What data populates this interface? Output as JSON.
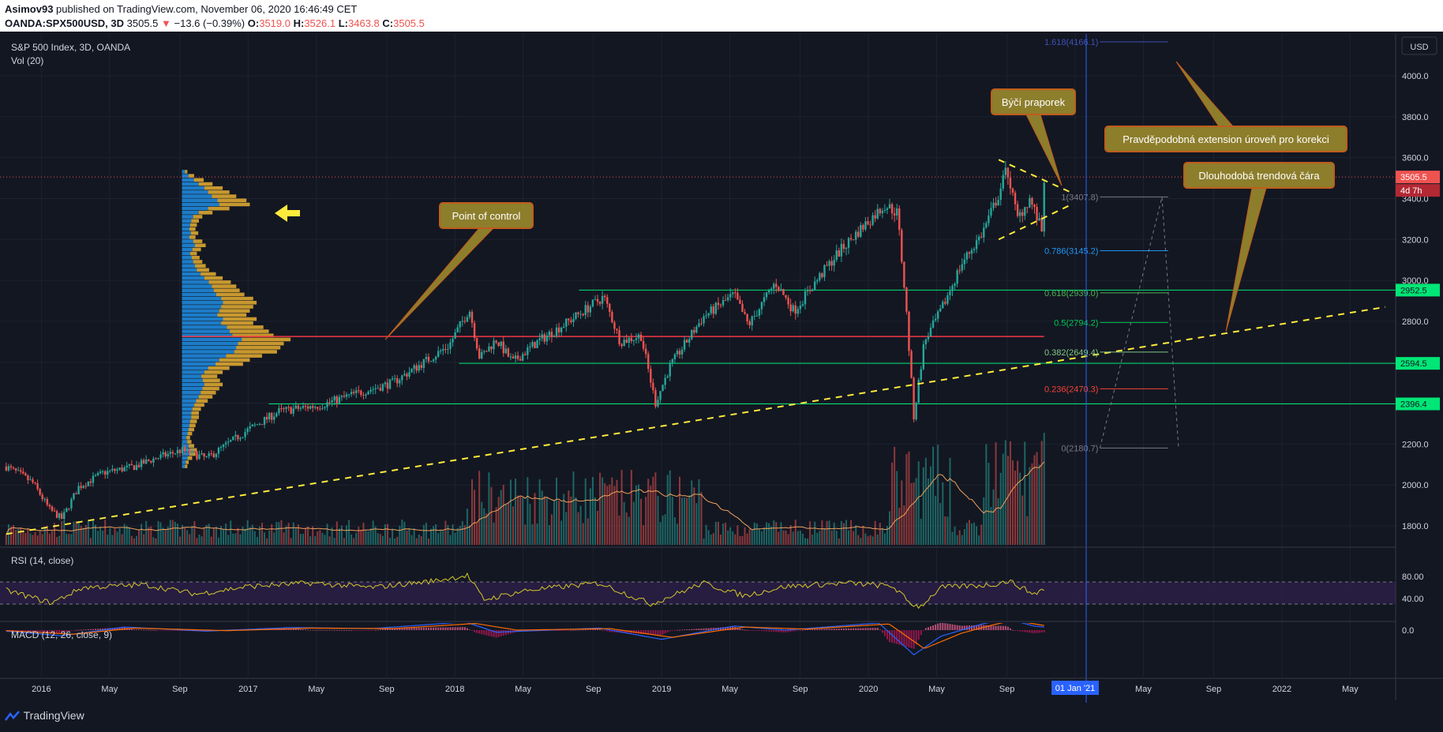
{
  "header": {
    "author": "Asimov93",
    "published_text": "published on TradingView.com, November 06, 2020 16:46:49 CET",
    "symbol": "OANDA:SPX500USD, 3D",
    "last": "3505.5",
    "change": "−13.6 (−0.39%)",
    "open_label": "O:",
    "open": "3519.0",
    "high_label": "H:",
    "high": "3526.1",
    "low_label": "L:",
    "low": "3463.8",
    "close_label": "C:",
    "close": "3505.5"
  },
  "legend": {
    "title": "S&P 500 Index, 3D, OANDA",
    "volume": "Vol (20)",
    "rsi": "RSI (14, close)",
    "macd": "MACD (12, 26, close, 9)"
  },
  "currency": "USD",
  "footer": {
    "brand": "TradingView"
  },
  "colors": {
    "background": "#131722",
    "up": "#26a69a",
    "down": "#ef5350",
    "yellow_line": "#ffeb3b",
    "green_level": "#00e676",
    "poc": "#f23645",
    "annotation_fill": "#8d7e2c",
    "annotation_border": "#c05c1c",
    "rsi": "#d6c82a",
    "macd": "#2962ff",
    "signal": "#ff6d00"
  },
  "chart_data": {
    "type": "candlestick",
    "price_axis": {
      "ticks": [
        "4000.0",
        "3800.0",
        "3600.0",
        "3400.0",
        "3200.0",
        "3000.0",
        "2800.0",
        "2600.0",
        "2400.0",
        "2200.0",
        "2000.0",
        "1800.0"
      ],
      "ylim": [
        1700,
        4300
      ],
      "scale": "linear"
    },
    "time_axis": {
      "ticks": [
        "2016",
        "May",
        "Sep",
        "2017",
        "May",
        "Sep",
        "2018",
        "May",
        "Sep",
        "2019",
        "May",
        "Sep",
        "2020",
        "May",
        "Sep",
        "01 Jan '21",
        "May",
        "Sep",
        "2022",
        "May"
      ]
    },
    "price_path": [
      [
        2015.83,
        2090
      ],
      [
        2015.9,
        2050
      ],
      [
        2015.96,
        2010
      ],
      [
        2016.04,
        1880
      ],
      [
        2016.1,
        1835
      ],
      [
        2016.18,
        1990
      ],
      [
        2016.3,
        2060
      ],
      [
        2016.45,
        2090
      ],
      [
        2016.55,
        2130
      ],
      [
        2016.68,
        2170
      ],
      [
        2016.8,
        2130
      ],
      [
        2016.9,
        2200
      ],
      [
        2017.0,
        2270
      ],
      [
        2017.15,
        2360
      ],
      [
        2017.35,
        2390
      ],
      [
        2017.5,
        2440
      ],
      [
        2017.7,
        2500
      ],
      [
        2017.85,
        2600
      ],
      [
        2017.97,
        2680
      ],
      [
        2018.07,
        2860
      ],
      [
        2018.12,
        2620
      ],
      [
        2018.2,
        2710
      ],
      [
        2018.28,
        2600
      ],
      [
        2018.4,
        2700
      ],
      [
        2018.55,
        2800
      ],
      [
        2018.72,
        2920
      ],
      [
        2018.8,
        2700
      ],
      [
        2018.9,
        2730
      ],
      [
        2018.97,
        2400
      ],
      [
        2019.04,
        2580
      ],
      [
        2019.2,
        2820
      ],
      [
        2019.35,
        2930
      ],
      [
        2019.42,
        2780
      ],
      [
        2019.55,
        2990
      ],
      [
        2019.64,
        2850
      ],
      [
        2019.75,
        3000
      ],
      [
        2019.85,
        3130
      ],
      [
        2019.97,
        3260
      ],
      [
        2020.08,
        3370
      ],
      [
        2020.14,
        3330
      ],
      [
        2020.18,
        2900
      ],
      [
        2020.22,
        2330
      ],
      [
        2020.27,
        2700
      ],
      [
        2020.35,
        2850
      ],
      [
        2020.45,
        3080
      ],
      [
        2020.55,
        3230
      ],
      [
        2020.63,
        3420
      ],
      [
        2020.67,
        3550
      ],
      [
        2020.72,
        3300
      ],
      [
        2020.78,
        3400
      ],
      [
        2020.84,
        3240
      ],
      [
        2020.85,
        3500
      ]
    ],
    "volume_profile": {
      "point_of_control": 2726,
      "bins": [
        [
          3540,
          8
        ],
        [
          3520,
          18
        ],
        [
          3500,
          32
        ],
        [
          3480,
          45
        ],
        [
          3460,
          60
        ],
        [
          3440,
          70
        ],
        [
          3420,
          80
        ],
        [
          3400,
          95
        ],
        [
          3380,
          100
        ],
        [
          3360,
          70
        ],
        [
          3340,
          45
        ],
        [
          3320,
          30
        ],
        [
          3300,
          25
        ],
        [
          3280,
          22
        ],
        [
          3260,
          20
        ],
        [
          3240,
          24
        ],
        [
          3220,
          20
        ],
        [
          3200,
          30
        ],
        [
          3180,
          35
        ],
        [
          3160,
          28
        ],
        [
          3140,
          22
        ],
        [
          3120,
          26
        ],
        [
          3100,
          30
        ],
        [
          3080,
          35
        ],
        [
          3060,
          40
        ],
        [
          3040,
          50
        ],
        [
          3020,
          60
        ],
        [
          3000,
          72
        ],
        [
          2980,
          80
        ],
        [
          2960,
          85
        ],
        [
          2940,
          92
        ],
        [
          2920,
          105
        ],
        [
          2900,
          110
        ],
        [
          2880,
          105
        ],
        [
          2860,
          100
        ],
        [
          2840,
          95
        ],
        [
          2820,
          110
        ],
        [
          2800,
          105
        ],
        [
          2780,
          120
        ],
        [
          2760,
          128
        ],
        [
          2740,
          135
        ],
        [
          2720,
          160
        ],
        [
          2700,
          150
        ],
        [
          2680,
          145
        ],
        [
          2660,
          140
        ],
        [
          2640,
          118
        ],
        [
          2620,
          100
        ],
        [
          2600,
          90
        ],
        [
          2580,
          70
        ],
        [
          2560,
          60
        ],
        [
          2540,
          52
        ],
        [
          2520,
          56
        ],
        [
          2500,
          60
        ],
        [
          2480,
          55
        ],
        [
          2460,
          50
        ],
        [
          2440,
          45
        ],
        [
          2420,
          38
        ],
        [
          2400,
          33
        ],
        [
          2380,
          28
        ],
        [
          2360,
          25
        ],
        [
          2340,
          25
        ],
        [
          2320,
          22
        ],
        [
          2300,
          20
        ],
        [
          2280,
          18
        ],
        [
          2260,
          15
        ],
        [
          2240,
          12
        ],
        [
          2220,
          14
        ],
        [
          2200,
          18
        ],
        [
          2180,
          22
        ],
        [
          2160,
          20
        ],
        [
          2140,
          15
        ],
        [
          2120,
          10
        ],
        [
          2100,
          8
        ]
      ]
    },
    "horizontal_levels": [
      {
        "label": "2952.5",
        "price": 2952.5,
        "from": 2018.6
      },
      {
        "label": "2594.5",
        "price": 2594.5,
        "from": 2018.02
      },
      {
        "label": "2396.4",
        "price": 2396.4,
        "from": 2017.1
      }
    ],
    "current_price": {
      "label": "3505.5",
      "price": 3505.5,
      "countdown": "4d 7h"
    },
    "fib_levels": [
      {
        "ratio": "1.618",
        "label": "1.618(4166.1)",
        "value": 4166.1,
        "color": "#3f51b5"
      },
      {
        "ratio": "1",
        "label": "1(3407.8)",
        "value": 3407.8,
        "color": "#787b86"
      },
      {
        "ratio": "0.786",
        "label": "0.786(3145.2)",
        "value": 3145.2,
        "color": "#2196f3"
      },
      {
        "ratio": "0.618",
        "label": "0.618(2939.0)",
        "value": 2939.0,
        "color": "#4caf50"
      },
      {
        "ratio": "0.5",
        "label": "0.5(2794.2)",
        "value": 2794.2,
        "color": "#00c853"
      },
      {
        "ratio": "0.382",
        "label": "0.382(2649.4)",
        "value": 2649.4,
        "color": "#81c784"
      },
      {
        "ratio": "0.236",
        "label": "0.236(2470.3)",
        "value": 2470.3,
        "color": "#f44336"
      },
      {
        "ratio": "0",
        "label": "0(2180.7)",
        "value": 2180.7,
        "color": "#787b86"
      }
    ],
    "annotations": [
      {
        "text": "Point of control"
      },
      {
        "text": "Býčí praporek"
      },
      {
        "text": "Pravděpodobná extension úroveň pro korekci"
      },
      {
        "text": "Dlouhodobá trendová čára"
      }
    ],
    "rsi": {
      "ticks": [
        "80.00",
        "40.00"
      ],
      "upper": 70,
      "lower": 30,
      "values": [
        [
          2015.83,
          55
        ],
        [
          2016.05,
          32
        ],
        [
          2016.2,
          60
        ],
        [
          2016.5,
          65
        ],
        [
          2016.75,
          48
        ],
        [
          2017.0,
          62
        ],
        [
          2017.3,
          68
        ],
        [
          2017.6,
          60
        ],
        [
          2017.9,
          72
        ],
        [
          2018.06,
          82
        ],
        [
          2018.14,
          38
        ],
        [
          2018.35,
          55
        ],
        [
          2018.7,
          68
        ],
        [
          2018.95,
          30
        ],
        [
          2019.2,
          68
        ],
        [
          2019.4,
          45
        ],
        [
          2019.6,
          62
        ],
        [
          2019.9,
          68
        ],
        [
          2020.12,
          62
        ],
        [
          2020.2,
          32
        ],
        [
          2020.25,
          25
        ],
        [
          2020.35,
          60
        ],
        [
          2020.6,
          65
        ],
        [
          2020.68,
          72
        ],
        [
          2020.8,
          48
        ],
        [
          2020.85,
          58
        ]
      ]
    },
    "macd": {
      "ticks": [
        "0.0"
      ],
      "macd_line": [
        [
          2015.83,
          -10
        ],
        [
          2016.1,
          -55
        ],
        [
          2016.4,
          30
        ],
        [
          2016.8,
          -10
        ],
        [
          2017.2,
          25
        ],
        [
          2017.6,
          15
        ],
        [
          2018.05,
          80
        ],
        [
          2018.2,
          -20
        ],
        [
          2018.7,
          20
        ],
        [
          2019.0,
          -90
        ],
        [
          2019.35,
          40
        ],
        [
          2019.6,
          0
        ],
        [
          2020.05,
          70
        ],
        [
          2020.22,
          -240
        ],
        [
          2020.35,
          -60
        ],
        [
          2020.55,
          60
        ],
        [
          2020.67,
          110
        ],
        [
          2020.8,
          40
        ],
        [
          2020.85,
          30
        ]
      ],
      "signal_line": [
        [
          2015.83,
          -5
        ],
        [
          2016.15,
          -40
        ],
        [
          2016.45,
          20
        ],
        [
          2016.9,
          -5
        ],
        [
          2017.3,
          20
        ],
        [
          2017.7,
          15
        ],
        [
          2018.1,
          65
        ],
        [
          2018.3,
          0
        ],
        [
          2018.75,
          15
        ],
        [
          2019.05,
          -70
        ],
        [
          2019.4,
          30
        ],
        [
          2019.7,
          10
        ],
        [
          2020.1,
          60
        ],
        [
          2020.27,
          -180
        ],
        [
          2020.45,
          -30
        ],
        [
          2020.6,
          50
        ],
        [
          2020.7,
          95
        ],
        [
          2020.82,
          55
        ],
        [
          2020.85,
          45
        ]
      ]
    }
  }
}
